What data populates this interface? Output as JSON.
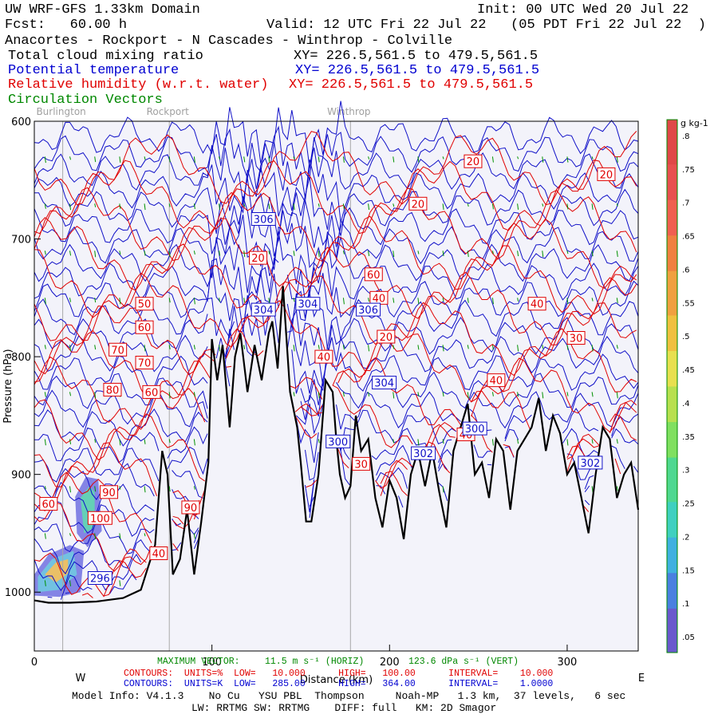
{
  "header": {
    "model_title": "UW WRF-GFS 1.33km Domain",
    "init": "Init: 00 UTC Wed 20 Jul 22",
    "fcst": "Fcst:   60.00 h",
    "valid": "Valid: 12 UTC Fri 22 Jul 22   (05 PDT Fri 22 Jul 22  )",
    "route": "Anacortes - Rockport - N Cascades - Winthrop - Colville",
    "fields": [
      {
        "name": "Total cloud mixing ratio",
        "xy": "XY= 226.5,561.5 to 479.5,561.5",
        "color": "#000000"
      },
      {
        "name": "Potential temperature",
        "xy": "XY= 226.5,561.5 to 479.5,561.5",
        "color": "#0000d0"
      },
      {
        "name": "Relative humidity (w.r.t. water)",
        "xy": "XY= 226.5,561.5 to 479.5,561.5",
        "color": "#e00000"
      },
      {
        "name": "Circulation Vectors",
        "xy": "",
        "color": "#008800"
      }
    ]
  },
  "chart_data": {
    "type": "cross-section",
    "x_axis": {
      "label": "Distance (km)",
      "range": [
        0,
        340
      ],
      "ticks": [
        0,
        100,
        200,
        300
      ],
      "west": "W",
      "east": "E"
    },
    "y_axis": {
      "label": "Pressure (hPa)",
      "range": [
        1050,
        600
      ],
      "ticks": [
        600,
        700,
        800,
        900,
        1000
      ]
    },
    "locations": [
      {
        "name": "Burlington",
        "x": 16
      },
      {
        "name": "Rockport",
        "x": 76
      },
      {
        "name": "Winthrop",
        "x": 178
      }
    ],
    "terrain": {
      "x": [
        0,
        8,
        20,
        35,
        50,
        60,
        68,
        72,
        75,
        78,
        82,
        86,
        90,
        94,
        98,
        100,
        103,
        106,
        110,
        113,
        116,
        120,
        124,
        128,
        132,
        134,
        137,
        140,
        144,
        148,
        150,
        153,
        156,
        160,
        164,
        168,
        170,
        172,
        175,
        178,
        181,
        184,
        188,
        192,
        196,
        200,
        204,
        208,
        212,
        216,
        220,
        224,
        228,
        232,
        236,
        240,
        244,
        248,
        252,
        256,
        260,
        264,
        268,
        272,
        276,
        280,
        284,
        288,
        292,
        296,
        300,
        304,
        308,
        312,
        316,
        320,
        324,
        328,
        332,
        336,
        340
      ],
      "p": [
        1007,
        1009,
        1009,
        1008,
        1005,
        998,
        960,
        880,
        900,
        985,
        972,
        930,
        985,
        940,
        890,
        785,
        820,
        790,
        860,
        800,
        780,
        830,
        790,
        820,
        780,
        770,
        810,
        740,
        830,
        860,
        890,
        940,
        940,
        900,
        820,
        830,
        870,
        900,
        920,
        910,
        850,
        880,
        870,
        920,
        945,
        905,
        920,
        955,
        900,
        880,
        910,
        880,
        915,
        945,
        880,
        860,
        840,
        900,
        890,
        920,
        870,
        880,
        930,
        880,
        870,
        860,
        835,
        880,
        850,
        865,
        900,
        890,
        920,
        950,
        900,
        860,
        870,
        920,
        900,
        890,
        930
      ]
    },
    "potential_temperature": {
      "units": "K",
      "contour_low": 285.0,
      "contour_high": 364.0,
      "interval": 1.0,
      "labels": [
        {
          "value": "296",
          "x": 37,
          "p": 988
        },
        {
          "value": "300",
          "x": 171,
          "p": 872
        },
        {
          "value": "302",
          "x": 219,
          "p": 882
        },
        {
          "value": "302",
          "x": 313,
          "p": 890
        },
        {
          "value": "300",
          "x": 248,
          "p": 861
        },
        {
          "value": "304",
          "x": 197,
          "p": 822
        },
        {
          "value": "306",
          "x": 188,
          "p": 760
        },
        {
          "value": "304",
          "x": 154,
          "p": 755
        },
        {
          "value": "304",
          "x": 129,
          "p": 760
        },
        {
          "value": "306",
          "x": 129,
          "p": 683
        }
      ]
    },
    "relative_humidity": {
      "units": "%",
      "contour_low": 10.0,
      "contour_high": 100.0,
      "interval": 10.0,
      "labels": [
        {
          "value": "20",
          "x": 247,
          "p": 634
        },
        {
          "value": "20",
          "x": 322,
          "p": 645
        },
        {
          "value": "20",
          "x": 216,
          "p": 670
        },
        {
          "value": "50",
          "x": 62,
          "p": 755
        },
        {
          "value": "60",
          "x": 62,
          "p": 775
        },
        {
          "value": "70",
          "x": 47,
          "p": 794
        },
        {
          "value": "70",
          "x": 62,
          "p": 805
        },
        {
          "value": "80",
          "x": 44,
          "p": 828
        },
        {
          "value": "60",
          "x": 66,
          "p": 830
        },
        {
          "value": "60",
          "x": 191,
          "p": 730
        },
        {
          "value": "40",
          "x": 194,
          "p": 750
        },
        {
          "value": "20",
          "x": 198,
          "p": 783
        },
        {
          "value": "40",
          "x": 283,
          "p": 755
        },
        {
          "value": "30",
          "x": 305,
          "p": 784
        },
        {
          "value": "40",
          "x": 163,
          "p": 800
        },
        {
          "value": "40",
          "x": 260,
          "p": 820
        },
        {
          "value": "40",
          "x": 243,
          "p": 866
        },
        {
          "value": "20",
          "x": 126,
          "p": 716
        },
        {
          "value": "30",
          "x": 184,
          "p": 891
        },
        {
          "value": "60",
          "x": 8,
          "p": 925
        },
        {
          "value": "90",
          "x": 42,
          "p": 915
        },
        {
          "value": "100",
          "x": 37,
          "p": 937
        },
        {
          "value": "90",
          "x": 88,
          "p": 928
        },
        {
          "value": "40",
          "x": 70,
          "p": 967
        }
      ]
    },
    "cloud_mixing_ratio": {
      "units": "g kg-1",
      "colorbar_ticks": [
        ".05",
        ".1",
        ".15",
        ".2",
        ".25",
        ".3",
        ".35",
        ".4",
        ".45",
        ".5",
        ".55",
        ".6",
        ".65",
        ".7",
        ".75",
        ".8"
      ]
    },
    "vectors": {
      "maximum_vector_label": "MAXIMUM VECTOR:",
      "horizontal": "11.5 m s⁻¹ (HORIZ)",
      "vertical": "123.6 dPa s⁻¹ (VERT)"
    }
  },
  "contour_info": {
    "rh_line": "CONTOURS:  UNITS=%  LOW=   10.000      HIGH=   100.00      INTERVAL=    10.000",
    "theta_line": "CONTOURS:  UNITS=K  LOW=   285.00      HIGH=   364.00      INTERVAL=    1.0000"
  },
  "footer": {
    "model_info": "Model Info: V4.1.3    No Cu   YSU PBL  Thompson     Noah-MP   1.3 km,  37 levels,   6 sec",
    "physics": "LW: RRTMG SW: RRTMG    DIFF: full   KM: 2D Smagor"
  },
  "colors": {
    "theta": "#1010c8",
    "rh": "#e00000",
    "vectors": "#009000",
    "terrain": "#000000",
    "plot_bg": "#f3f3fa"
  }
}
